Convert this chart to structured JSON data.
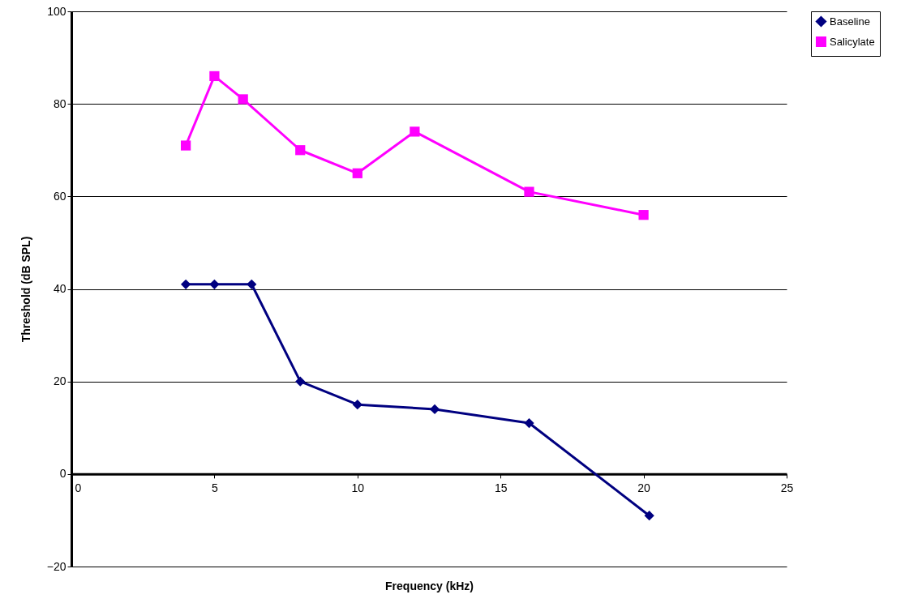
{
  "chart_data": {
    "type": "line",
    "xlabel": "Frequency (kHz)",
    "ylabel": "Threshold (dB SPL)",
    "xlim": [
      0,
      25
    ],
    "xticks": [
      0,
      5,
      10,
      15,
      20,
      25
    ],
    "ylim": [
      -20,
      100
    ],
    "yticks": [
      -20,
      0,
      20,
      40,
      60,
      80,
      100
    ],
    "grid": "y",
    "legend": "right",
    "series": [
      {
        "name": "Baseline",
        "color": "#000080",
        "marker": "diamond",
        "x": [
          4,
          5,
          6.3,
          8,
          10,
          12.7,
          16,
          20.2
        ],
        "values": [
          41,
          41,
          41,
          20,
          15,
          14,
          11,
          -9
        ]
      },
      {
        "name": "Salicylate",
        "color": "#ff00ff",
        "marker": "square",
        "x": [
          4,
          5,
          6,
          8,
          10,
          12,
          16,
          20
        ],
        "values": [
          71,
          86,
          81,
          70,
          65,
          74,
          61,
          56
        ]
      }
    ]
  }
}
